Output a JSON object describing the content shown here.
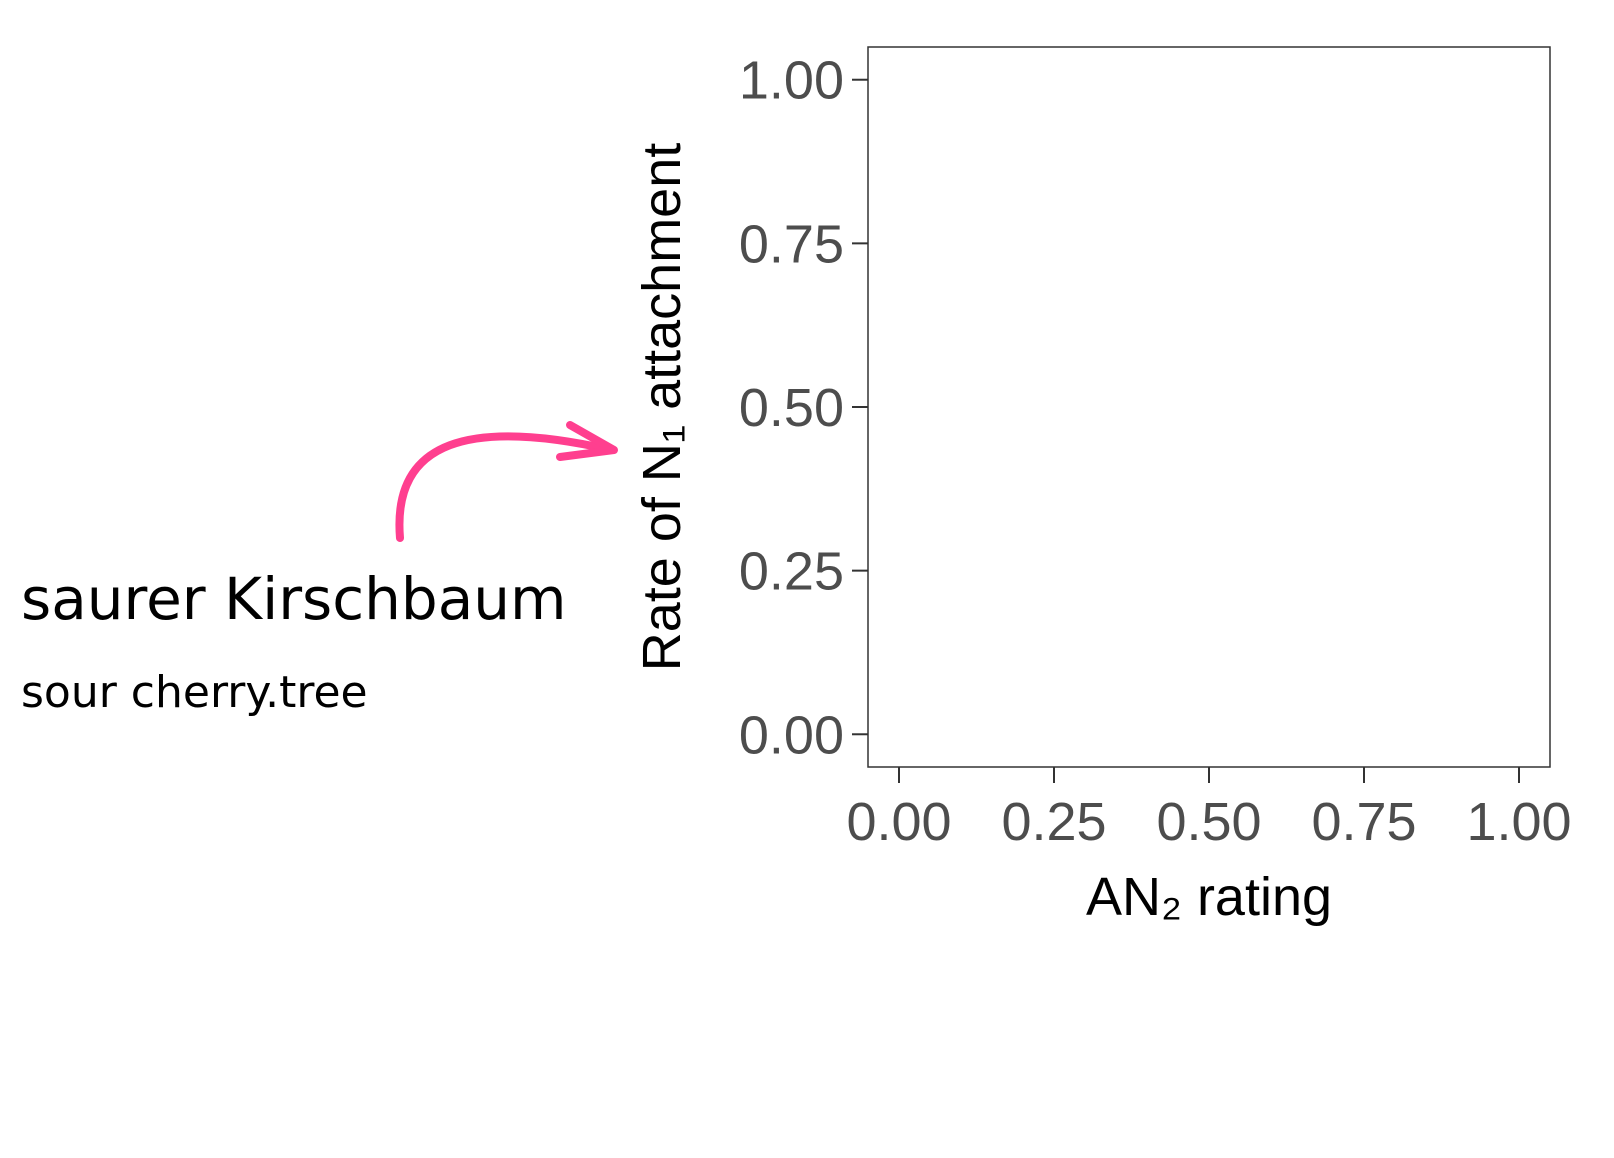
{
  "chart_data": {
    "type": "scatter",
    "x_label": "AN₂ rating",
    "y_label": "Rate of N₁ attachment",
    "annotations": [
      "saurer Kirschbaum",
      "sour cherry.tree"
    ],
    "xlim": [
      -0.05,
      1.05
    ],
    "ylim": [
      -0.05,
      1.05
    ],
    "xticks": [
      {
        "value": 0,
        "label": "0.00"
      },
      {
        "value": 0.25,
        "label": "0.25"
      },
      {
        "value": 0.5,
        "label": "0.50"
      },
      {
        "value": 0.75,
        "label": "0.75"
      },
      {
        "value": 1,
        "label": "1.00"
      }
    ],
    "yticks": [
      {
        "value": 0,
        "label": "0.00"
      },
      {
        "value": 0.25,
        "label": "0.25"
      },
      {
        "value": 0.5,
        "label": "0.50"
      },
      {
        "value": 0.75,
        "label": "0.75"
      },
      {
        "value": 1,
        "label": "1.00"
      }
    ],
    "grid": false
  }
}
